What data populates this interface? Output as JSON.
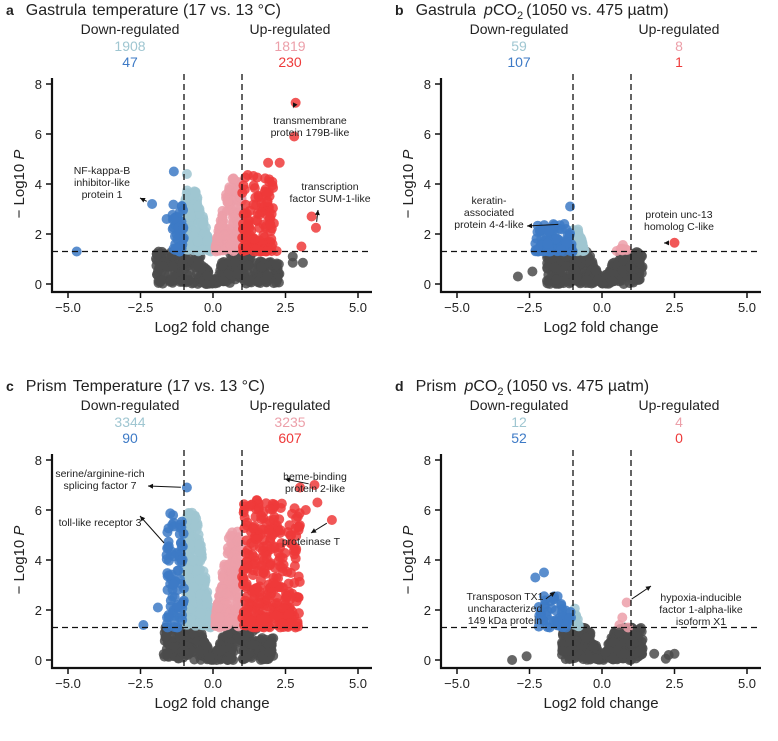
{
  "colors": {
    "down_light": "#9fc6d1",
    "down": "#3d7ac6",
    "up_light": "#ec9fa9",
    "up": "#ee3a3a",
    "ns": "#4b4b4b"
  },
  "chart_data": [
    {
      "type": "scatter",
      "letter": "a",
      "stage": "Gastrula",
      "title_plain": "temperature (17 vs. 13 °C)",
      "is_pco2": false,
      "xlabel": "Log2 fold change",
      "ylabel_prefix": "− Log10",
      "ylabel_italic": "P",
      "xlim": [
        -5.5,
        5.5
      ],
      "ylim": [
        0,
        8
      ],
      "xticks": [
        "−5.0",
        "−2.5",
        "0.0",
        "2.5",
        "5.0"
      ],
      "xtick_values": [
        -5,
        -2.5,
        0,
        2.5,
        5
      ],
      "yticks": [
        "0",
        "2",
        "4",
        "6",
        "8"
      ],
      "ytick_values": [
        0,
        2,
        4,
        6,
        8
      ],
      "fc_threshold": 1,
      "p_threshold": 1.3,
      "down_label": "Down-regulated",
      "up_label": "Up-regulated",
      "down_count_light": "1908",
      "down_count": "47",
      "up_count_light": "1819",
      "up_count": "230",
      "clouds": {
        "ns": {
          "x": [
            -2,
            2.3
          ],
          "ytop": 1.3,
          "n": 320
        },
        "down_light": {
          "x": [
            -1,
            -0.08
          ],
          "ytop": 3.8,
          "n": 160
        },
        "up_light": {
          "x": [
            0.08,
            1
          ],
          "ytop": 4.3,
          "n": 160
        },
        "down": {
          "x": [
            -1.4,
            -1
          ],
          "ytop": 3.4,
          "n": 40
        },
        "up": {
          "x": [
            1,
            2.2
          ],
          "ytop": 4.4,
          "n": 120
        }
      },
      "outliers": [
        [
          -4.7,
          1.3,
          "down"
        ],
        [
          -1.35,
          4.5,
          "down"
        ],
        [
          -2.1,
          3.2,
          "down"
        ],
        [
          -1.6,
          2.6,
          "down"
        ],
        [
          2.85,
          7.25,
          "up"
        ],
        [
          2.8,
          5.9,
          "up"
        ],
        [
          1.9,
          4.85,
          "up"
        ],
        [
          2.3,
          4.85,
          "up"
        ],
        [
          2.05,
          3.95,
          "up"
        ],
        [
          3.4,
          2.7,
          "up"
        ],
        [
          3.55,
          2.25,
          "up"
        ],
        [
          3.05,
          1.5,
          "up"
        ],
        [
          2.75,
          1.1,
          "ns"
        ],
        [
          3.1,
          0.85,
          "ns"
        ],
        [
          2.75,
          0.85,
          "ns"
        ],
        [
          -1.9,
          0.5,
          "ns"
        ],
        [
          -0.9,
          4.4,
          "down_light"
        ]
      ],
      "annotations": [
        {
          "text": [
            "NF-kappa-B",
            "inhibitor-like",
            "protein 1"
          ],
          "point": [
            -2.1,
            3.2
          ]
        },
        {
          "text": [
            "transmembrane",
            "protein 179B-like"
          ],
          "point": [
            2.85,
            7.25
          ]
        },
        {
          "text": [
            "transcription",
            "factor SUM-1-like"
          ],
          "point": [
            3.55,
            2.25
          ]
        }
      ]
    },
    {
      "type": "scatter",
      "letter": "b",
      "stage": "Gastrula",
      "is_pco2": true,
      "pco2_italic": "p",
      "pco2_main": "CO",
      "pco2_sub": "2",
      "title_plain": "(1050 vs. 475 µatm)",
      "xlabel": "Log2 fold change",
      "ylabel_prefix": "− Log10",
      "ylabel_italic": "P",
      "xlim": [
        -5.5,
        5.5
      ],
      "ylim": [
        0,
        8
      ],
      "xticks": [
        "−5.0",
        "−2.5",
        "0.0",
        "2.5",
        "5.0"
      ],
      "xtick_values": [
        -5,
        -2.5,
        0,
        2.5,
        5
      ],
      "yticks": [
        "0",
        "2",
        "4",
        "6",
        "8"
      ],
      "ytick_values": [
        0,
        2,
        4,
        6,
        8
      ],
      "fc_threshold": 1,
      "p_threshold": 1.3,
      "down_label": "Down-regulated",
      "up_label": "Up-regulated",
      "down_count_light": "59",
      "down_count": "107",
      "up_count_light": "8",
      "up_count": "1",
      "clouds": {
        "ns": {
          "x": [
            -1.9,
            1.4
          ],
          "ytop": 1.3,
          "n": 320
        },
        "down_light": {
          "x": [
            -1,
            -0.6
          ],
          "ytop": 2.2,
          "n": 40
        },
        "up_light": {
          "x": [
            0.5,
            0.9
          ],
          "ytop": 1.6,
          "n": 8
        },
        "down": {
          "x": [
            -2.3,
            -1
          ],
          "ytop": 2.4,
          "n": 100
        },
        "up": {
          "x": [
            1,
            1
          ],
          "ytop": 1.3,
          "n": 0
        }
      },
      "outliers": [
        [
          -1.1,
          3.1,
          "down"
        ],
        [
          -1.3,
          2.4,
          "down"
        ],
        [
          2.5,
          1.65,
          "up"
        ],
        [
          -2.4,
          0.5,
          "ns"
        ],
        [
          -2.9,
          0.3,
          "ns"
        ]
      ],
      "annotations": [
        {
          "text": [
            "keratin-",
            "associated",
            "protein 4-4-like"
          ],
          "point": [
            -1.3,
            2.4
          ]
        },
        {
          "text": [
            "protein unc-13",
            "homolog C-like"
          ],
          "point": [
            2.5,
            1.65
          ]
        }
      ]
    },
    {
      "type": "scatter",
      "letter": "c",
      "stage": "Prism",
      "title_plain": "Temperature (17 vs. 13 °C)",
      "is_pco2": false,
      "xlabel": "Log2 fold change",
      "ylabel_prefix": "− Log10",
      "ylabel_italic": "P",
      "xlim": [
        -5.5,
        5.5
      ],
      "ylim": [
        0,
        8
      ],
      "xticks": [
        "−5.0",
        "−2.5",
        "0.0",
        "2.5",
        "5.0"
      ],
      "xtick_values": [
        -5,
        -2.5,
        0,
        2.5,
        5
      ],
      "yticks": [
        "0",
        "2",
        "4",
        "6",
        "8"
      ],
      "ytick_values": [
        0,
        2,
        4,
        6,
        8
      ],
      "fc_threshold": 1,
      "p_threshold": 1.3,
      "down_label": "Down-regulated",
      "up_label": "Up-regulated",
      "down_count_light": "3344",
      "down_count": "90",
      "up_count_light": "3235",
      "up_count": "607",
      "clouds": {
        "ns": {
          "x": [
            -1.7,
            2.1
          ],
          "ytop": 1.3,
          "n": 320
        },
        "down_light": {
          "x": [
            -1,
            -0.08
          ],
          "ytop": 5.9,
          "n": 260
        },
        "up_light": {
          "x": [
            0.08,
            1
          ],
          "ytop": 5.3,
          "n": 240
        },
        "down": {
          "x": [
            -1.6,
            -1
          ],
          "ytop": 6.0,
          "n": 80
        },
        "up": {
          "x": [
            1,
            3
          ],
          "ytop": 6.4,
          "n": 320
        }
      },
      "outliers": [
        [
          -0.9,
          6.9,
          "down"
        ],
        [
          -1.55,
          4.5,
          "down"
        ],
        [
          -1.6,
          4.2,
          "down"
        ],
        [
          -2.4,
          1.4,
          "down"
        ],
        [
          -1.9,
          2.1,
          "down"
        ],
        [
          3.5,
          7.0,
          "up"
        ],
        [
          4.1,
          5.6,
          "up"
        ],
        [
          3.6,
          6.3,
          "up"
        ],
        [
          3.2,
          6.0,
          "up"
        ],
        [
          3.0,
          6.9,
          "up"
        ]
      ],
      "annotations": [
        {
          "text": [
            "serine/arginine-rich",
            "splicing factor 7"
          ],
          "point": [
            -0.9,
            6.9
          ]
        },
        {
          "text": [
            "toll-like receptor 3"
          ],
          "point": [
            -1.55,
            4.5
          ]
        },
        {
          "text": [
            "heme-binding",
            "protein 2-like"
          ],
          "point": [
            3.5,
            7.0
          ]
        },
        {
          "text": [
            "proteinase T"
          ],
          "point": [
            4.1,
            5.6
          ]
        }
      ]
    },
    {
      "type": "scatter",
      "letter": "d",
      "stage": "Prism",
      "is_pco2": true,
      "pco2_italic": "p",
      "pco2_main": "CO",
      "pco2_sub": "2",
      "title_plain": "(1050 vs. 475 µatm)",
      "xlabel": "Log2 fold change",
      "ylabel_prefix": "− Log10",
      "ylabel_italic": "P",
      "xlim": [
        -5.5,
        5.5
      ],
      "ylim": [
        0,
        8
      ],
      "xticks": [
        "−5.0",
        "−2.5",
        "0.0",
        "2.5",
        "5.0"
      ],
      "xtick_values": [
        -5,
        -2.5,
        0,
        2.5,
        5
      ],
      "yticks": [
        "0",
        "2",
        "4",
        "6",
        "8"
      ],
      "ytick_values": [
        0,
        2,
        4,
        6,
        8
      ],
      "fc_threshold": 1,
      "p_threshold": 1.3,
      "down_label": "Down-regulated",
      "up_label": "Up-regulated",
      "down_count_light": "12",
      "down_count": "52",
      "up_count_light": "4",
      "up_count": "0",
      "clouds": {
        "ns": {
          "x": [
            -1.4,
            1.4
          ],
          "ytop": 1.3,
          "n": 300
        },
        "down_light": {
          "x": [
            -1,
            -0.8
          ],
          "ytop": 2.3,
          "n": 12
        },
        "up_light": {
          "x": [
            0.6,
            0.9
          ],
          "ytop": 1.7,
          "n": 0
        },
        "down": {
          "x": [
            -2.2,
            -1
          ],
          "ytop": 2.6,
          "n": 52
        },
        "up": {
          "x": [
            1,
            1
          ],
          "ytop": 1.3,
          "n": 0
        }
      },
      "outliers": [
        [
          -2.3,
          3.3,
          "down"
        ],
        [
          -2.0,
          3.5,
          "down"
        ],
        [
          0.85,
          2.3,
          "up_light"
        ],
        [
          0.7,
          1.7,
          "up_light"
        ],
        [
          0.6,
          1.4,
          "up_light"
        ],
        [
          0.9,
          1.3,
          "up_light"
        ],
        [
          -3.1,
          0.0,
          "ns"
        ],
        [
          -2.6,
          0.15,
          "ns"
        ],
        [
          1.8,
          0.25,
          "ns"
        ],
        [
          2.3,
          0.2,
          "ns"
        ],
        [
          2.5,
          0.25,
          "ns"
        ],
        [
          2.2,
          0.05,
          "ns"
        ],
        [
          0.6,
          1.1,
          "ns"
        ]
      ],
      "annotations": [
        {
          "text": [
            "Transposon TX1",
            "uncharacterized",
            "149 kDa protein"
          ],
          "point": [
            -2.1,
            2.3
          ]
        },
        {
          "text": [
            "hypoxia-inducible",
            "factor 1-alpha-like",
            "isoform X1"
          ],
          "point": [
            0.85,
            2.3
          ]
        }
      ]
    }
  ]
}
